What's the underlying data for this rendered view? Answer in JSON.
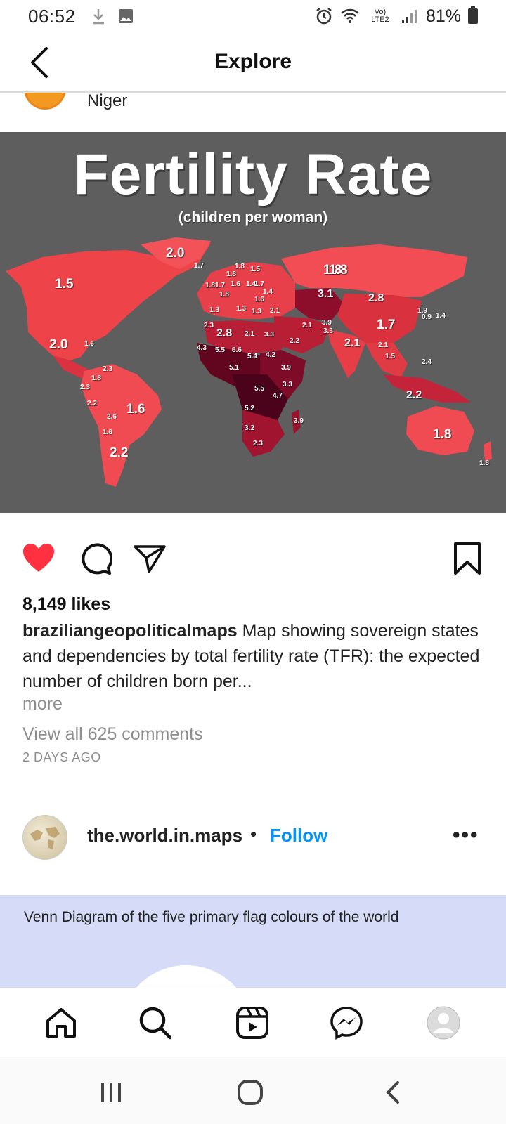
{
  "status_bar": {
    "time": "06:52",
    "network_label": "Vo) LTE2",
    "battery": "81%"
  },
  "header": {
    "title": "Explore"
  },
  "previous_post": {
    "username": "Niger"
  },
  "map_image": {
    "title": "Fertility Rate",
    "subtitle": "(children per woman)",
    "labels": [
      {
        "text": "2.0",
        "size": "l"
      },
      {
        "text": "1.7",
        "size": "s"
      },
      {
        "text": "1.5",
        "size": "l"
      },
      {
        "text": "1.8",
        "size": "l"
      },
      {
        "text": "2.0",
        "size": "l"
      },
      {
        "text": "1.6",
        "size": "s"
      },
      {
        "text": "1.8",
        "size": "s"
      },
      {
        "text": "1.5",
        "size": "s"
      },
      {
        "text": "1.8",
        "size": "s"
      },
      {
        "text": "1.8",
        "size": "s"
      },
      {
        "text": "1.7",
        "size": "s"
      },
      {
        "text": "1.6",
        "size": "s"
      },
      {
        "text": "1.4",
        "size": "s"
      },
      {
        "text": "1.7",
        "size": "s"
      },
      {
        "text": "1.8",
        "size": "s"
      },
      {
        "text": "1.4",
        "size": "s"
      },
      {
        "text": "1.6",
        "size": "s"
      },
      {
        "text": "1.3",
        "size": "s"
      },
      {
        "text": "1.3",
        "size": "s"
      },
      {
        "text": "1.3",
        "size": "s"
      },
      {
        "text": "2.1",
        "size": "s"
      },
      {
        "text": "1.8",
        "size": "l"
      },
      {
        "text": "3.1",
        "size": "m"
      },
      {
        "text": "2.8",
        "size": "m"
      },
      {
        "text": "1.9",
        "size": "s"
      },
      {
        "text": "0.9",
        "size": "s"
      },
      {
        "text": "1.4",
        "size": "s"
      },
      {
        "text": "2.3",
        "size": "s"
      },
      {
        "text": "2.8",
        "size": "m"
      },
      {
        "text": "2.1",
        "size": "s"
      },
      {
        "text": "3.3",
        "size": "s"
      },
      {
        "text": "2.1",
        "size": "s"
      },
      {
        "text": "3.9",
        "size": "s"
      },
      {
        "text": "3.3",
        "size": "s"
      },
      {
        "text": "1.7",
        "size": "l"
      },
      {
        "text": "2.2",
        "size": "s"
      },
      {
        "text": "2.1",
        "size": "m"
      },
      {
        "text": "2.1",
        "size": "s"
      },
      {
        "text": "1.5",
        "size": "s"
      },
      {
        "text": "4.3",
        "size": "s"
      },
      {
        "text": "5.5",
        "size": "s"
      },
      {
        "text": "6.6",
        "size": "s"
      },
      {
        "text": "5.4",
        "size": "s"
      },
      {
        "text": "4.2",
        "size": "s"
      },
      {
        "text": "5.1",
        "size": "s"
      },
      {
        "text": "3.9",
        "size": "s"
      },
      {
        "text": "2.4",
        "size": "s"
      },
      {
        "text": "2.3",
        "size": "s"
      },
      {
        "text": "1.8",
        "size": "s"
      },
      {
        "text": "2.3",
        "size": "s"
      },
      {
        "text": "5.5",
        "size": "s"
      },
      {
        "text": "3.3",
        "size": "s"
      },
      {
        "text": "4.7",
        "size": "s"
      },
      {
        "text": "2.2",
        "size": "m"
      },
      {
        "text": "2.2",
        "size": "s"
      },
      {
        "text": "1.6",
        "size": "l"
      },
      {
        "text": "5.2",
        "size": "s"
      },
      {
        "text": "2.6",
        "size": "s"
      },
      {
        "text": "1.6",
        "size": "s"
      },
      {
        "text": "3.9",
        "size": "s"
      },
      {
        "text": "3.2",
        "size": "s"
      },
      {
        "text": "1.8",
        "size": "l"
      },
      {
        "text": "2.2",
        "size": "l"
      },
      {
        "text": "2.3",
        "size": "s"
      },
      {
        "text": "1.8",
        "size": "s"
      }
    ]
  },
  "post": {
    "likes": "8,149 likes",
    "username": "braziliangeopoliticalmaps",
    "caption": "Map showing sovereign states and dependencies by total fertility rate (TFR): the expected number of children born per...",
    "more": "more",
    "view_comments": "View all 625 comments",
    "date": "2 DAYS AGO"
  },
  "next_post": {
    "username": "the.world.in.maps",
    "separator": "•",
    "follow": "Follow",
    "options": "•••",
    "image_text": "Venn Diagram of the five primary flag colours of the world"
  },
  "colors": {
    "like_red": "#ff3040",
    "follow_blue": "#0095f6",
    "map_background": "#5e5e5e"
  }
}
